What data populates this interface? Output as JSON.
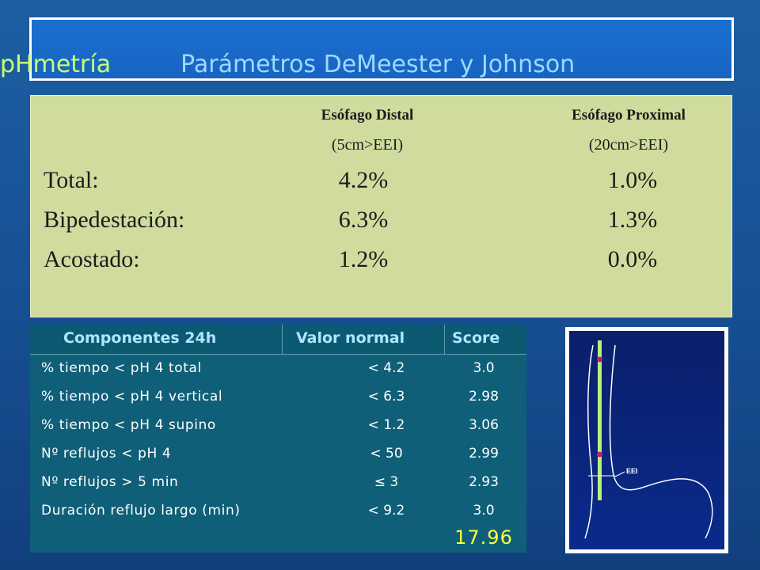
{
  "title": {
    "main": "pHmetría",
    "sub": "Parámetros  DeMeester y Johnson"
  },
  "stats": {
    "columns": [
      {
        "heading": "Esófago Distal",
        "sub": "(5cm>EEI)"
      },
      {
        "heading": "Esófago Proximal",
        "sub": "(20cm>EEI)"
      }
    ],
    "rows": [
      {
        "label": "Total:",
        "distal": "4.2%",
        "proximal": "1.0%"
      },
      {
        "label": "Bipedestación:",
        "distal": "6.3%",
        "proximal": "1.3%"
      },
      {
        "label": "Acostado:",
        "distal": "1.2%",
        "proximal": "0.0%"
      }
    ]
  },
  "score_table": {
    "headers": {
      "component": "Componentes 24h",
      "normal": "Valor normal",
      "score": "Score"
    },
    "rows": [
      {
        "component": "% tiempo < pH 4 total",
        "normal": "< 4.2",
        "score": "3.0"
      },
      {
        "component": "% tiempo < pH 4 vertical",
        "normal": "< 6.3",
        "score": "2.98"
      },
      {
        "component": "% tiempo < pH 4 supino",
        "normal": "< 1.2",
        "score": "3.06"
      },
      {
        "component": "Nº reflujos < pH 4",
        "normal": "< 50",
        "score": "2.99"
      },
      {
        "component": "Nº reflujos > 5 min",
        "normal": "≤ 3",
        "score": "2.93"
      },
      {
        "component": "Duración reflujo largo (min)",
        "normal": "< 9.2",
        "score": "3.0"
      }
    ],
    "total": "17.96",
    "colors": {
      "total": "#ffff3a",
      "header_text": "#aee6ff"
    }
  },
  "diagram": {
    "label": "EEI",
    "colors": {
      "probe": "#b9f27a",
      "sensor": "#c01a8a",
      "outline": "#ffffff"
    }
  }
}
